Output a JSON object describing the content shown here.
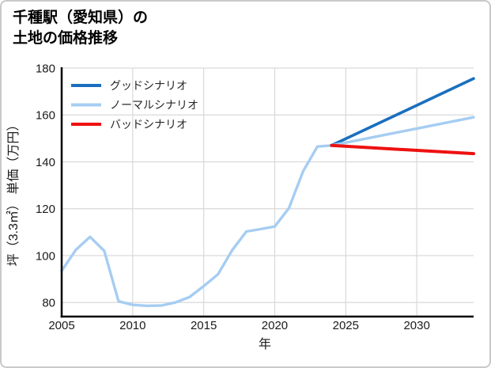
{
  "title": {
    "line1": "千種駅（愛知県）の",
    "line2": "土地の価格推移"
  },
  "chart_data": {
    "type": "line",
    "title": "千種駅（愛知県）の土地の価格推移",
    "xlabel": "年",
    "ylabel": "坪（3.3㎡） 単価（万円）",
    "xlim": [
      2005,
      2034
    ],
    "ylim": [
      74,
      180
    ],
    "x_ticks": [
      2005,
      2010,
      2015,
      2020,
      2025,
      2030
    ],
    "y_ticks": [
      80,
      100,
      120,
      140,
      160,
      180
    ],
    "grid": true,
    "legend_position": "upper-left",
    "colors": {
      "good": "#1a6fbe",
      "normal": "#a6cdf2",
      "bad": "#ee1111",
      "gridline": "#d9d9d9",
      "spine": "#000000"
    },
    "series": [
      {
        "name": "グッドシナリオ",
        "color": "#1a6fbe",
        "x": [
          2024,
          2034
        ],
        "y": [
          147,
          175.5
        ]
      },
      {
        "name": "ノーマルシナリオ",
        "color": "#a6cdf2",
        "x": [
          2005,
          2006,
          2007,
          2008,
          2009,
          2010,
          2011,
          2012,
          2013,
          2014,
          2015,
          2016,
          2017,
          2018,
          2019,
          2020,
          2021,
          2022,
          2023,
          2024,
          2034
        ],
        "y": [
          93.5,
          102.5,
          108,
          102,
          80.5,
          79,
          78.6,
          78.7,
          80,
          82.3,
          87,
          92,
          102.3,
          110.3,
          111.3,
          112.4,
          120.2,
          136,
          146.5,
          147,
          159
        ]
      },
      {
        "name": "バッドシナリオ",
        "color": "#ee1111",
        "x": [
          2024,
          2034
        ],
        "y": [
          147,
          143.5
        ]
      }
    ]
  }
}
